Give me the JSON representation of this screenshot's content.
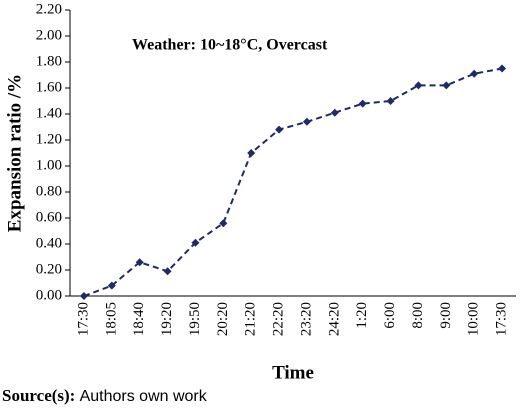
{
  "chart_data": {
    "type": "line",
    "annotation": "Weather: 10~18°C, Overcast",
    "y_label": "Expansion ratio /%",
    "x_label": "Time",
    "source_label": "Source(s):",
    "source_text": "Authors own work",
    "categories": [
      "17:30",
      "18:05",
      "18:40",
      "19:20",
      "19:50",
      "20:20",
      "21:20",
      "22:20",
      "23:20",
      "24:20",
      "1:20",
      "6:00",
      "8:00",
      "9:00",
      "10:00",
      "17:30"
    ],
    "values": [
      0,
      0.08,
      0.26,
      0.19,
      0.41,
      0.56,
      1.1,
      1.28,
      1.34,
      1.41,
      1.48,
      1.5,
      1.62,
      1.62,
      1.71,
      1.75
    ],
    "color": "#1f2a66",
    "ylim": [
      0,
      2.2
    ],
    "yticks": [
      {
        "value": 0,
        "label": "0.00"
      },
      {
        "value": 0.2,
        "label": "0.20"
      },
      {
        "value": 0.4,
        "label": "0.40"
      },
      {
        "value": 0.6,
        "label": "0.60"
      },
      {
        "value": 0.8,
        "label": "0.80"
      },
      {
        "value": 1.0,
        "label": "1.00"
      },
      {
        "value": 1.2,
        "label": "1.20"
      },
      {
        "value": 1.4,
        "label": "1.40"
      },
      {
        "value": 1.6,
        "label": "1.60"
      },
      {
        "value": 1.8,
        "label": "1.80"
      },
      {
        "value": 2.0,
        "label": "2.00"
      },
      {
        "value": 2.2,
        "label": "2.20"
      }
    ]
  }
}
